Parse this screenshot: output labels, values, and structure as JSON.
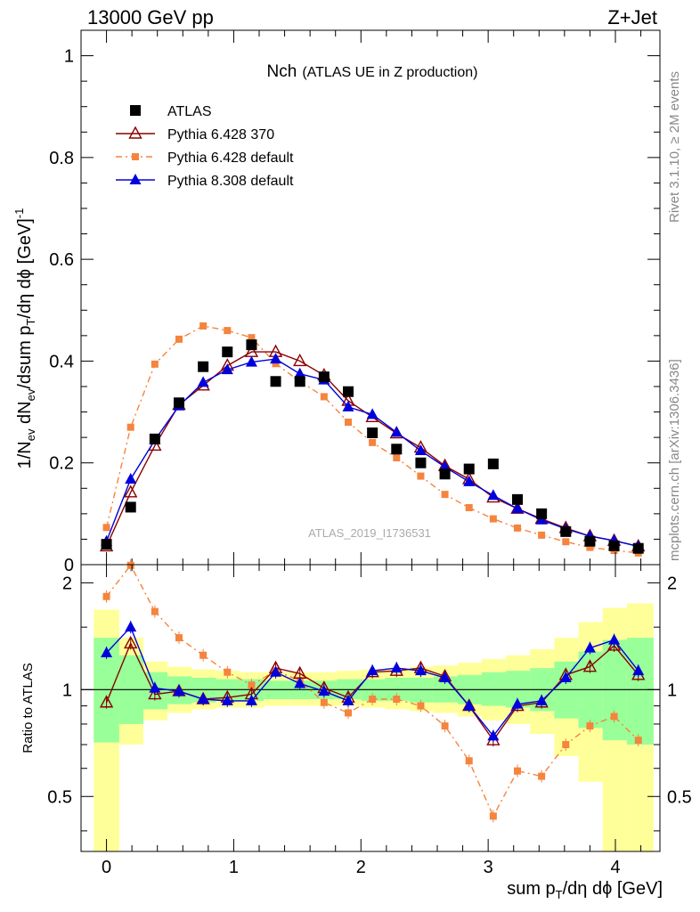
{
  "header": {
    "left": "13000 GeV pp",
    "right": "Z+Jet"
  },
  "side": {
    "rivet": "Rivet 3.1.10, ≥ 2M events",
    "mcplots": "mcplots.cern.ch [arXiv:1306.3436]"
  },
  "watermark": "ATLAS_2019_I1736531",
  "colors": {
    "data": "#000000",
    "p6_370": "#8b0000",
    "p6_default": "#f5843d",
    "p8": "#0000dd",
    "band_yellow": "#ffff99",
    "band_green": "#99ff99"
  },
  "chart_data": {
    "type": "line",
    "title": "Nch",
    "subtitle": "(ATLAS UE in Z production)",
    "xlabel": "sum p_T/dη dϕ [GeV]",
    "ylabel": "1/N_ev dN_ev/dsum p_T/dη dϕ [GeV]^-1",
    "ratio_ylabel": "Ratio to ATLAS",
    "xlim": [
      -0.2,
      4.35
    ],
    "ylim": [
      0,
      1.05
    ],
    "ratio_ylim": [
      0.35,
      2.25
    ],
    "x_ticks": [
      "0",
      "1",
      "2",
      "3",
      "4"
    ],
    "y_ticks": [
      "0",
      "0.2",
      "0.4",
      "0.6",
      "0.8",
      "1"
    ],
    "ratio_ticks": [
      "0.5",
      "1",
      "2"
    ],
    "x": [
      0.0,
      0.19,
      0.38,
      0.57,
      0.76,
      0.95,
      1.14,
      1.33,
      1.52,
      1.71,
      1.9,
      2.09,
      2.28,
      2.47,
      2.66,
      2.85,
      3.04,
      3.23,
      3.42,
      3.61,
      3.8,
      3.99,
      4.18
    ],
    "series": [
      {
        "name": "ATLAS",
        "key": "data",
        "marker": "square",
        "values": [
          0.04,
          0.113,
          0.247,
          0.318,
          0.389,
          0.418,
          0.432,
          0.36,
          0.36,
          0.369,
          0.34,
          0.259,
          0.227,
          0.2,
          0.178,
          0.188,
          0.198,
          0.128,
          0.1,
          0.065,
          0.046,
          0.037,
          0.032
        ]
      },
      {
        "name": "Pythia 6.428 370",
        "key": "p6_370",
        "marker": "triangle-open",
        "values": [
          0.036,
          0.142,
          0.234,
          0.314,
          0.352,
          0.391,
          0.418,
          0.418,
          0.4,
          0.372,
          0.322,
          0.29,
          0.258,
          0.23,
          0.194,
          0.168,
          0.132,
          0.11,
          0.09,
          0.072,
          0.056,
          0.047,
          0.036
        ]
      },
      {
        "name": "Pythia 6.428 default",
        "key": "p6_default",
        "marker": "square-small",
        "values": [
          0.073,
          0.27,
          0.394,
          0.443,
          0.469,
          0.46,
          0.446,
          0.395,
          0.36,
          0.33,
          0.28,
          0.24,
          0.21,
          0.174,
          0.138,
          0.112,
          0.09,
          0.072,
          0.058,
          0.045,
          0.034,
          0.028,
          0.023
        ]
      },
      {
        "name": "Pythia 8.308 default",
        "key": "p8",
        "marker": "triangle",
        "values": [
          0.046,
          0.168,
          0.245,
          0.312,
          0.358,
          0.383,
          0.398,
          0.404,
          0.375,
          0.363,
          0.31,
          0.295,
          0.26,
          0.224,
          0.192,
          0.163,
          0.136,
          0.11,
          0.088,
          0.07,
          0.056,
          0.047,
          0.036
        ]
      }
    ],
    "ratio": {
      "p6_370": [
        0.92,
        1.35,
        0.97,
        0.99,
        0.94,
        0.95,
        0.97,
        1.15,
        1.11,
        1.01,
        0.95,
        1.12,
        1.13,
        1.15,
        1.09,
        0.9,
        0.72,
        0.9,
        0.92,
        1.1,
        1.16,
        1.33,
        1.1
      ],
      "p6_default": [
        1.83,
        2.24,
        1.66,
        1.4,
        1.25,
        1.12,
        1.03,
        1.13,
        1.06,
        0.92,
        0.86,
        0.94,
        0.94,
        0.9,
        0.79,
        0.63,
        0.44,
        0.59,
        0.57,
        0.7,
        0.79,
        0.84,
        0.72
      ],
      "p8": [
        1.27,
        1.5,
        1.01,
        0.99,
        0.94,
        0.93,
        0.93,
        1.12,
        1.04,
        0.99,
        0.93,
        1.13,
        1.15,
        1.13,
        1.08,
        0.9,
        0.74,
        0.91,
        0.93,
        1.08,
        1.31,
        1.38,
        1.13
      ]
    },
    "band_edges": [
      -0.1,
      0.1,
      0.29,
      0.48,
      0.67,
      0.86,
      1.05,
      1.24,
      1.43,
      1.62,
      1.81,
      2.0,
      2.19,
      2.38,
      2.57,
      2.76,
      2.95,
      3.14,
      3.33,
      3.52,
      3.71,
      3.9,
      4.09,
      4.3
    ],
    "band_yellow": [
      [
        0.35,
        1.68
      ],
      [
        0.7,
        1.4
      ],
      [
        0.82,
        1.2
      ],
      [
        0.86,
        1.16
      ],
      [
        0.88,
        1.14
      ],
      [
        0.89,
        1.13
      ],
      [
        0.89,
        1.12
      ],
      [
        0.9,
        1.12
      ],
      [
        0.9,
        1.12
      ],
      [
        0.9,
        1.12
      ],
      [
        0.9,
        1.13
      ],
      [
        0.89,
        1.14
      ],
      [
        0.88,
        1.15
      ],
      [
        0.87,
        1.16
      ],
      [
        0.86,
        1.17
      ],
      [
        0.84,
        1.19
      ],
      [
        0.82,
        1.22
      ],
      [
        0.8,
        1.25
      ],
      [
        0.75,
        1.3
      ],
      [
        0.65,
        1.4
      ],
      [
        0.55,
        1.55
      ],
      [
        0.35,
        1.7
      ],
      [
        0.35,
        1.75
      ]
    ],
    "band_green": [
      [
        0.71,
        1.4
      ],
      [
        0.8,
        1.25
      ],
      [
        0.88,
        1.12
      ],
      [
        0.91,
        1.09
      ],
      [
        0.92,
        1.08
      ],
      [
        0.93,
        1.07
      ],
      [
        0.93,
        1.07
      ],
      [
        0.94,
        1.06
      ],
      [
        0.94,
        1.06
      ],
      [
        0.94,
        1.06
      ],
      [
        0.94,
        1.07
      ],
      [
        0.93,
        1.07
      ],
      [
        0.93,
        1.08
      ],
      [
        0.92,
        1.08
      ],
      [
        0.92,
        1.09
      ],
      [
        0.91,
        1.1
      ],
      [
        0.9,
        1.12
      ],
      [
        0.89,
        1.13
      ],
      [
        0.87,
        1.15
      ],
      [
        0.83,
        1.2
      ],
      [
        0.78,
        1.28
      ],
      [
        0.72,
        1.38
      ],
      [
        0.7,
        1.4
      ]
    ]
  }
}
